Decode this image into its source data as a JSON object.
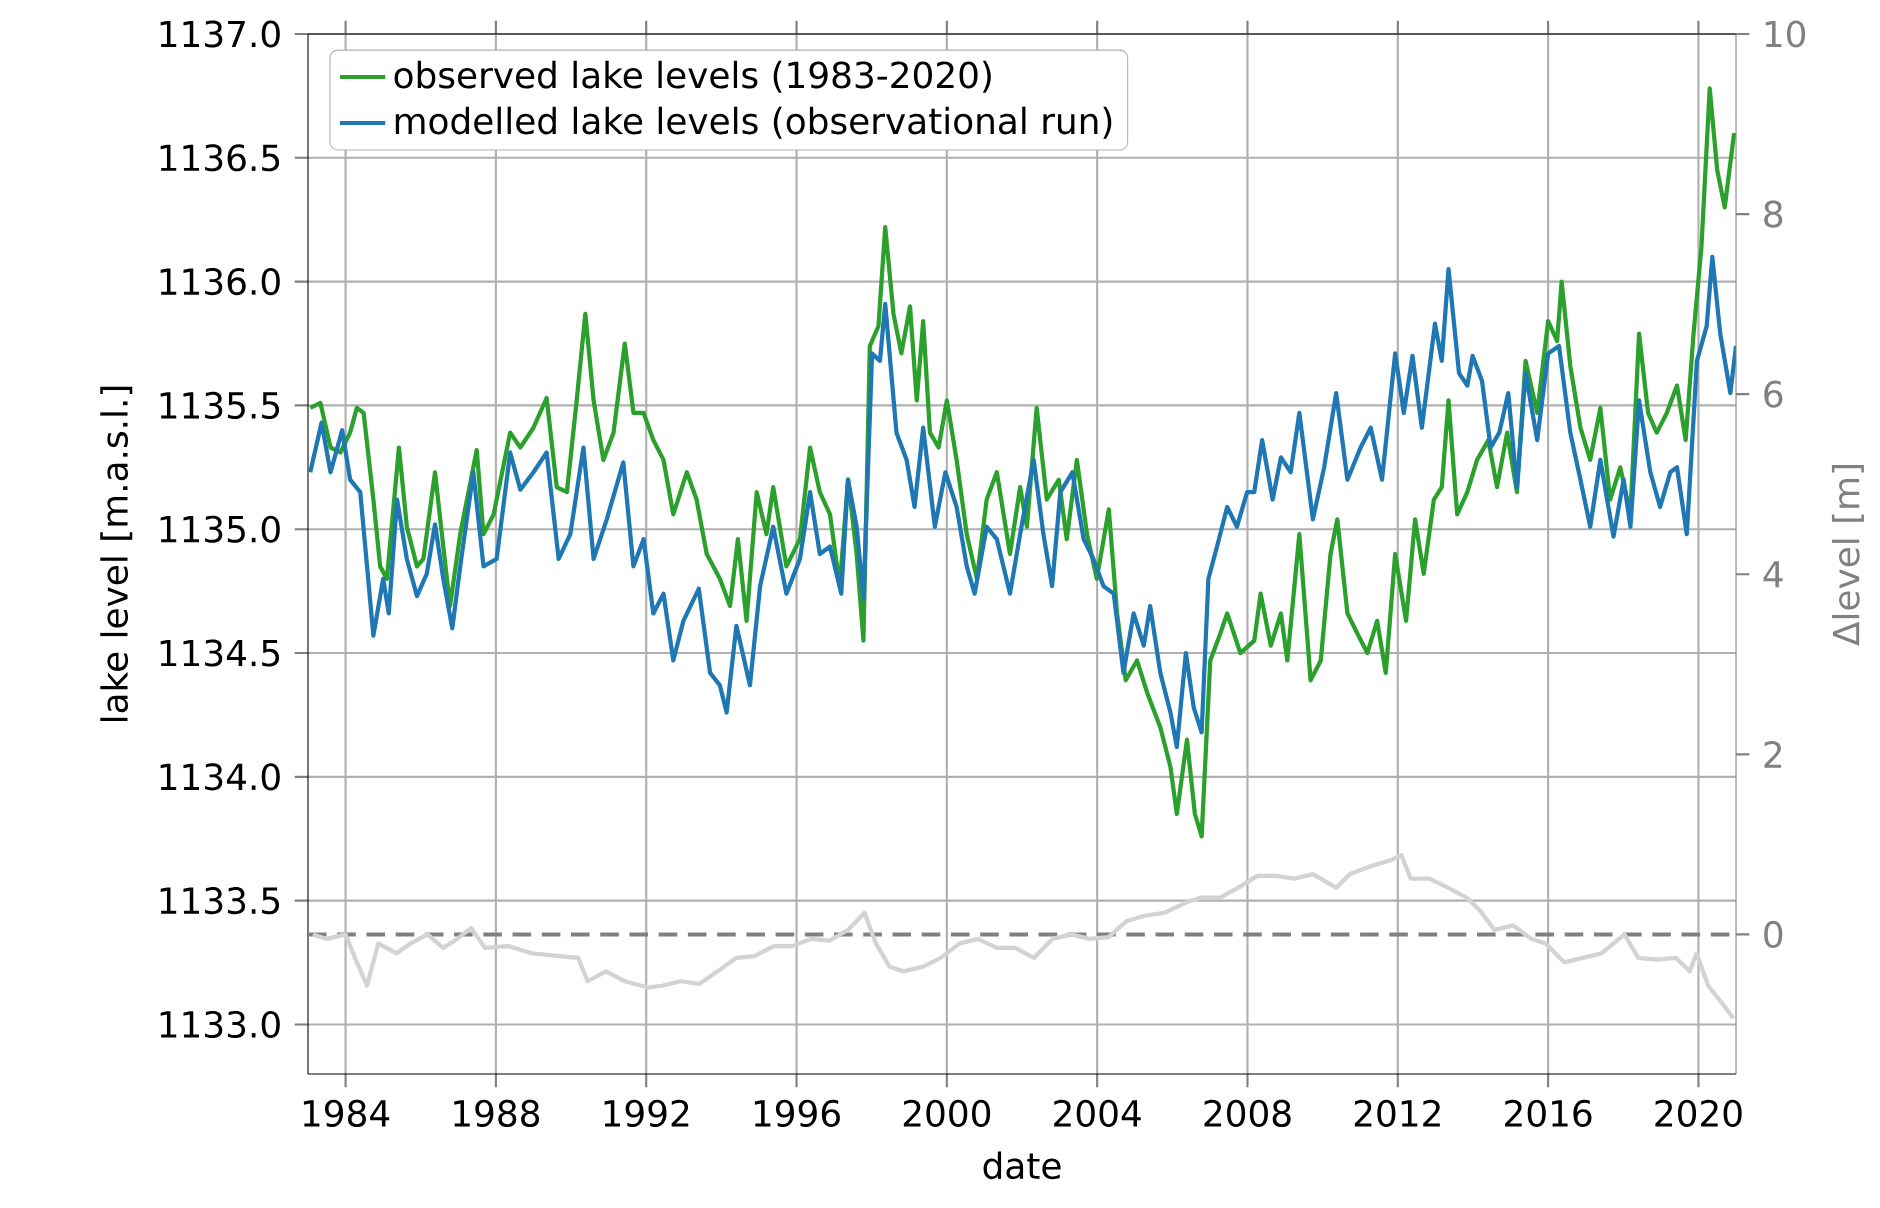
{
  "chart_data": {
    "type": "line",
    "xlabel": "date",
    "ylabel": "lake level [m.a.s.l.]",
    "y2label": "Δlevel [m]",
    "xlim": [
      1983,
      2021
    ],
    "xticks": [
      1984,
      1988,
      1992,
      1996,
      2000,
      2004,
      2008,
      2012,
      2016,
      2020
    ],
    "ylim": [
      1132.8,
      1137.0
    ],
    "yticks": [
      {
        "value": 1133.0,
        "label": "1133.0"
      },
      {
        "value": 1133.5,
        "label": "1133.5"
      },
      {
        "value": 1134.0,
        "label": "1134.0"
      },
      {
        "value": 1134.5,
        "label": "1134.5"
      },
      {
        "value": 1135.0,
        "label": "1135.0"
      },
      {
        "value": 1135.5,
        "label": "1135.5"
      },
      {
        "value": 1136.0,
        "label": "1136.0"
      },
      {
        "value": 1136.5,
        "label": "1136.5"
      },
      {
        "value": 1137.0,
        "label": "1137.0"
      }
    ],
    "y2lim": [
      -1.55,
      10
    ],
    "y2ticks": [
      0,
      2,
      4,
      6,
      8,
      10
    ],
    "grid": true,
    "legend": "top left",
    "ref_lines": [
      {
        "axis": "y2",
        "value": 0,
        "color": "#808080",
        "line_style": "dashed"
      }
    ],
    "series": [
      {
        "name": "observed lake levels (1983-2020)",
        "color": "#2ca02c",
        "x": [
          1983.06,
          1983.33,
          1983.6,
          1983.86,
          1984.12,
          1984.3,
          1984.48,
          1984.74,
          1984.92,
          1985.1,
          1985.42,
          1985.63,
          1985.9,
          1986.07,
          1986.38,
          1986.6,
          1986.78,
          1987.05,
          1987.49,
          1987.67,
          1987.94,
          1988.38,
          1988.65,
          1989.0,
          1989.35,
          1989.62,
          1989.89,
          1990.15,
          1990.38,
          1990.6,
          1990.86,
          1991.13,
          1991.43,
          1991.66,
          1991.93,
          1992.19,
          1992.46,
          1992.72,
          1993.08,
          1993.34,
          1993.61,
          1993.96,
          1994.23,
          1994.44,
          1994.67,
          1994.94,
          1995.2,
          1995.38,
          1995.73,
          1996.09,
          1996.36,
          1996.62,
          1996.89,
          1997.15,
          1997.37,
          1997.6,
          1997.78,
          1997.95,
          1998.18,
          1998.36,
          1998.58,
          1998.79,
          1999.02,
          1999.2,
          1999.37,
          1999.55,
          1999.78,
          2000.0,
          2000.26,
          2000.53,
          2000.8,
          2001.06,
          2001.33,
          2001.68,
          2001.95,
          2002.13,
          2002.39,
          2002.66,
          2002.98,
          2003.19,
          2003.46,
          2003.73,
          2003.99,
          2004.31,
          2004.53,
          2004.76,
          2005.06,
          2005.33,
          2005.68,
          2005.95,
          2006.12,
          2006.39,
          2006.6,
          2006.78,
          2007.01,
          2007.28,
          2007.46,
          2007.81,
          2008.18,
          2008.35,
          2008.62,
          2008.89,
          2009.06,
          2009.38,
          2009.68,
          2009.95,
          2010.21,
          2010.39,
          2010.66,
          2010.92,
          2011.19,
          2011.45,
          2011.68,
          2011.93,
          2012.22,
          2012.46,
          2012.69,
          2012.96,
          2013.17,
          2013.35,
          2013.58,
          2013.85,
          2014.11,
          2014.41,
          2014.64,
          2014.91,
          2015.17,
          2015.4,
          2015.71,
          2016.0,
          2016.24,
          2016.36,
          2016.59,
          2016.86,
          2017.12,
          2017.39,
          2017.65,
          2017.92,
          2018.19,
          2018.42,
          2018.66,
          2018.89,
          2019.16,
          2019.43,
          2019.66,
          2019.87,
          2020.08,
          2020.3,
          2020.5,
          2020.7,
          2020.95
        ],
        "values": [
          1135.49,
          1135.51,
          1135.33,
          1135.31,
          1135.39,
          1135.49,
          1135.47,
          1135.12,
          1134.85,
          1134.8,
          1135.33,
          1135.01,
          1134.85,
          1134.88,
          1135.23,
          1134.93,
          1134.69,
          1134.98,
          1135.32,
          1134.98,
          1135.06,
          1135.39,
          1135.33,
          1135.41,
          1135.53,
          1135.17,
          1135.15,
          1135.52,
          1135.87,
          1135.52,
          1135.28,
          1135.39,
          1135.75,
          1135.47,
          1135.47,
          1135.36,
          1135.28,
          1135.06,
          1135.23,
          1135.12,
          1134.9,
          1134.8,
          1134.69,
          1134.96,
          1134.63,
          1135.15,
          1134.98,
          1135.17,
          1134.85,
          1134.96,
          1135.33,
          1135.15,
          1135.06,
          1134.77,
          1135.2,
          1134.9,
          1134.55,
          1135.74,
          1135.82,
          1136.22,
          1135.87,
          1135.71,
          1135.9,
          1135.52,
          1135.84,
          1135.39,
          1135.33,
          1135.52,
          1135.28,
          1134.98,
          1134.8,
          1135.12,
          1135.23,
          1134.9,
          1135.17,
          1135.01,
          1135.49,
          1135.12,
          1135.2,
          1134.96,
          1135.28,
          1134.98,
          1134.8,
          1135.08,
          1134.66,
          1134.39,
          1134.47,
          1134.34,
          1134.2,
          1134.04,
          1133.85,
          1134.15,
          1133.85,
          1133.76,
          1134.47,
          1134.58,
          1134.66,
          1134.5,
          1134.55,
          1134.74,
          1134.53,
          1134.66,
          1134.47,
          1134.98,
          1134.39,
          1134.47,
          1134.9,
          1135.04,
          1134.66,
          1134.58,
          1134.5,
          1134.63,
          1134.42,
          1134.9,
          1134.63,
          1135.04,
          1134.82,
          1135.12,
          1135.17,
          1135.52,
          1135.06,
          1135.15,
          1135.28,
          1135.36,
          1135.17,
          1135.39,
          1135.15,
          1135.68,
          1135.47,
          1135.84,
          1135.76,
          1136.0,
          1135.66,
          1135.41,
          1135.28,
          1135.49,
          1135.12,
          1135.25,
          1135.06,
          1135.79,
          1135.47,
          1135.39,
          1135.47,
          1135.58,
          1135.36,
          1135.79,
          1136.14,
          1136.78,
          1136.45,
          1136.3,
          1136.6
        ]
      },
      {
        "name": "modelled lake levels (observational run)",
        "color": "#1f77b4",
        "x": [
          1983.06,
          1983.36,
          1983.6,
          1983.91,
          1984.12,
          1984.39,
          1984.74,
          1985.0,
          1985.15,
          1985.37,
          1985.63,
          1985.9,
          1986.16,
          1986.38,
          1986.6,
          1986.84,
          1987.05,
          1987.4,
          1987.67,
          1988.02,
          1988.38,
          1988.65,
          1989.0,
          1989.35,
          1989.67,
          1989.98,
          1990.33,
          1990.6,
          1990.95,
          1991.39,
          1991.66,
          1991.93,
          1992.19,
          1992.46,
          1992.72,
          1992.99,
          1993.4,
          1993.7,
          1993.96,
          1994.14,
          1994.4,
          1994.76,
          1995.03,
          1995.38,
          1995.73,
          1996.09,
          1996.36,
          1996.62,
          1996.89,
          1997.19,
          1997.37,
          1997.6,
          1997.78,
          1998.01,
          1998.22,
          1998.36,
          1998.66,
          1998.93,
          1999.14,
          1999.37,
          1999.68,
          1999.96,
          2000.26,
          2000.53,
          2000.74,
          2001.06,
          2001.33,
          2001.68,
          2001.95,
          2002.31,
          2002.57,
          2002.8,
          2003.02,
          2003.34,
          2003.64,
          2003.9,
          2004.17,
          2004.44,
          2004.7,
          2004.97,
          2005.24,
          2005.41,
          2005.68,
          2005.95,
          2006.12,
          2006.36,
          2006.57,
          2006.78,
          2006.96,
          2007.19,
          2007.46,
          2007.72,
          2007.99,
          2008.18,
          2008.39,
          2008.67,
          2008.89,
          2009.15,
          2009.38,
          2009.74,
          2010.04,
          2010.36,
          2010.66,
          2011.01,
          2011.28,
          2011.58,
          2011.93,
          2012.16,
          2012.39,
          2012.64,
          2012.99,
          2013.17,
          2013.35,
          2013.63,
          2013.85,
          2013.99,
          2014.24,
          2014.47,
          2014.7,
          2014.94,
          2015.17,
          2015.4,
          2015.71,
          2016.0,
          2016.29,
          2016.59,
          2016.86,
          2017.12,
          2017.39,
          2017.74,
          2018.01,
          2018.19,
          2018.42,
          2018.72,
          2018.98,
          2019.25,
          2019.43,
          2019.69,
          2019.96,
          2020.22,
          2020.37,
          2020.58,
          2020.85,
          2021.0
        ],
        "values": [
          1135.23,
          1135.43,
          1135.23,
          1135.4,
          1135.2,
          1135.15,
          1134.57,
          1134.8,
          1134.66,
          1135.12,
          1134.88,
          1134.73,
          1134.82,
          1135.02,
          1134.8,
          1134.6,
          1134.85,
          1135.23,
          1134.85,
          1134.88,
          1135.31,
          1135.16,
          1135.23,
          1135.31,
          1134.88,
          1134.98,
          1135.33,
          1134.88,
          1135.04,
          1135.27,
          1134.85,
          1134.96,
          1134.66,
          1134.74,
          1134.47,
          1134.63,
          1134.76,
          1134.42,
          1134.37,
          1134.26,
          1134.61,
          1134.37,
          1134.77,
          1135.01,
          1134.74,
          1134.88,
          1135.15,
          1134.9,
          1134.93,
          1134.74,
          1135.2,
          1135.01,
          1134.72,
          1135.71,
          1135.68,
          1135.91,
          1135.39,
          1135.28,
          1135.09,
          1135.41,
          1135.01,
          1135.23,
          1135.09,
          1134.85,
          1134.74,
          1135.01,
          1134.96,
          1134.74,
          1134.98,
          1135.28,
          1134.98,
          1134.77,
          1135.15,
          1135.23,
          1134.96,
          1134.88,
          1134.77,
          1134.74,
          1134.42,
          1134.66,
          1134.53,
          1134.69,
          1134.42,
          1134.26,
          1134.12,
          1134.5,
          1134.28,
          1134.18,
          1134.8,
          1134.93,
          1135.09,
          1135.01,
          1135.15,
          1135.15,
          1135.36,
          1135.12,
          1135.29,
          1135.23,
          1135.47,
          1135.04,
          1135.25,
          1135.55,
          1135.2,
          1135.33,
          1135.41,
          1135.2,
          1135.71,
          1135.47,
          1135.7,
          1135.41,
          1135.83,
          1135.68,
          1136.05,
          1135.63,
          1135.58,
          1135.7,
          1135.6,
          1135.33,
          1135.39,
          1135.55,
          1135.17,
          1135.63,
          1135.36,
          1135.71,
          1135.74,
          1135.39,
          1135.2,
          1135.01,
          1135.28,
          1134.97,
          1135.2,
          1135.01,
          1135.52,
          1135.23,
          1135.09,
          1135.23,
          1135.25,
          1134.98,
          1135.68,
          1135.82,
          1136.1,
          1135.79,
          1135.55,
          1135.74
        ]
      },
      {
        "color": "#d3d3d3",
        "axis": "y2",
        "x": [
          1983.13,
          1983.5,
          1984.0,
          1984.25,
          1984.57,
          1984.87,
          1985.36,
          1985.73,
          1986.18,
          1986.6,
          1986.97,
          1987.34,
          1987.71,
          1988.33,
          1988.95,
          1989.69,
          1990.19,
          1990.44,
          1990.93,
          1991.43,
          1992.04,
          1992.42,
          1992.91,
          1993.41,
          1993.9,
          1994.4,
          1994.89,
          1995.39,
          1995.88,
          1996.38,
          1996.87,
          1997.37,
          1997.81,
          1998.11,
          1998.48,
          1998.85,
          1999.35,
          1999.84,
          2000.34,
          2000.83,
          2001.33,
          2001.82,
          2002.32,
          2002.81,
          2003.31,
          2003.8,
          2004.3,
          2004.79,
          2005.29,
          2005.78,
          2006.4,
          2006.77,
          2007.27,
          2007.76,
          2008.26,
          2008.75,
          2009.25,
          2009.74,
          2010.36,
          2010.73,
          2011.23,
          2011.85,
          2012.1,
          2012.34,
          2012.84,
          2013.33,
          2013.83,
          2014.2,
          2014.57,
          2015.07,
          2015.56,
          2015.93,
          2016.43,
          2016.92,
          2017.42,
          2018.03,
          2018.4,
          2018.9,
          2019.4,
          2019.77,
          2019.95,
          2020.26,
          2020.64,
          2020.93
        ],
        "values": [
          0.0,
          -0.05,
          0.0,
          -0.26,
          -0.57,
          -0.1,
          -0.21,
          -0.1,
          0.0,
          -0.15,
          -0.05,
          0.07,
          -0.15,
          -0.13,
          -0.21,
          -0.24,
          -0.26,
          -0.52,
          -0.41,
          -0.52,
          -0.59,
          -0.57,
          -0.52,
          -0.55,
          -0.41,
          -0.26,
          -0.24,
          -0.13,
          -0.13,
          -0.05,
          -0.07,
          0.05,
          0.24,
          -0.1,
          -0.36,
          -0.41,
          -0.36,
          -0.26,
          -0.1,
          -0.05,
          -0.15,
          -0.15,
          -0.26,
          -0.05,
          0.0,
          -0.05,
          -0.03,
          0.15,
          0.21,
          0.24,
          0.36,
          0.41,
          0.41,
          0.52,
          0.65,
          0.65,
          0.62,
          0.67,
          0.52,
          0.67,
          0.75,
          0.83,
          0.88,
          0.62,
          0.62,
          0.52,
          0.41,
          0.26,
          0.05,
          0.1,
          -0.05,
          -0.1,
          -0.31,
          -0.26,
          -0.21,
          0.0,
          -0.26,
          -0.28,
          -0.26,
          -0.41,
          -0.21,
          -0.57,
          -0.77,
          -0.93
        ]
      }
    ]
  }
}
